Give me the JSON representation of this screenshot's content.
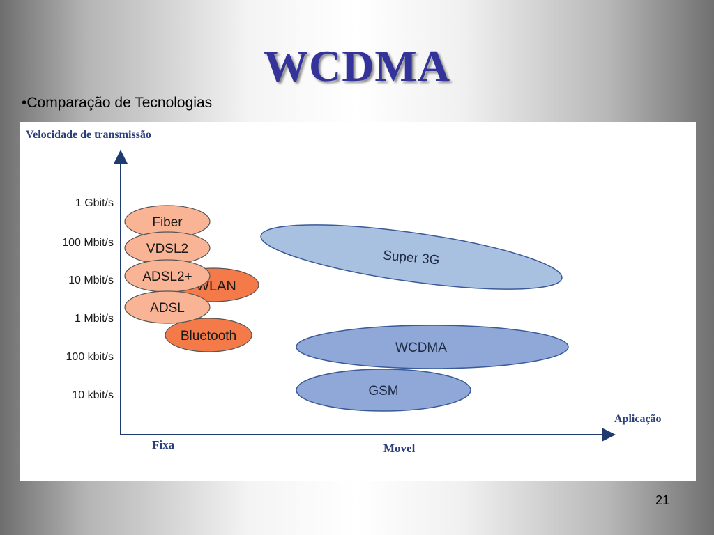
{
  "slide": {
    "title": "WCDMA",
    "subtitle": "•Comparação de Tecnologias",
    "page_number": "21"
  },
  "diagram": {
    "y_axis_title": "Velocidade de transmissão",
    "x_axis_title": "Aplicação",
    "x_categories": [
      "Fixa",
      "Movel"
    ],
    "speed_levels": [
      "1 Gbit/s",
      "100 Mbit/s",
      "10 Mbit/s",
      "1 Mbit/s",
      "100 kbit/s",
      "10 kbit/s"
    ],
    "technologies": {
      "fiber": "Fiber",
      "vdsl2": "VDSL2",
      "adsl2plus": "ADSL2+",
      "wlan": "WLAN",
      "adsl": "ADSL",
      "bluetooth": "Bluetooth",
      "super3g": "Super 3G",
      "wcdma": "WCDMA",
      "gsm": "GSM"
    },
    "colors": {
      "fixed_light": "#f9b495",
      "fixed_dark": "#f47a4a",
      "mobile_light": "#a9c1e0",
      "mobile_mid": "#8fa8d8",
      "axis": "#1f3a6e",
      "axis_text": "#2a3f7a"
    }
  }
}
